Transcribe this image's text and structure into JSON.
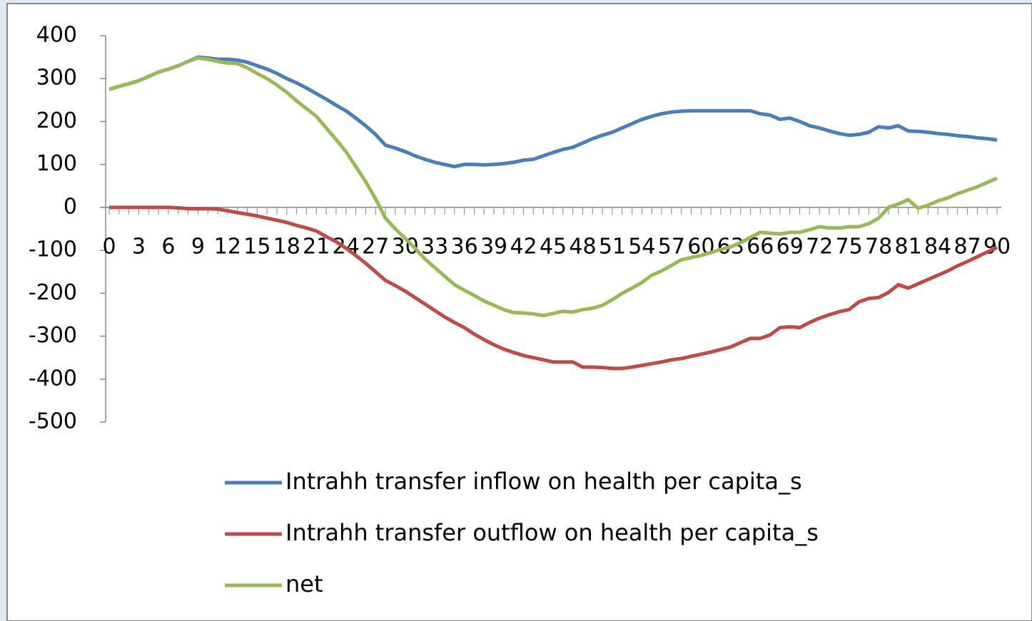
{
  "chart_data": {
    "type": "line",
    "categories": [
      "0",
      null,
      null,
      "3",
      null,
      null,
      "6",
      null,
      null,
      "9",
      null,
      null,
      "12",
      null,
      null,
      "15",
      null,
      null,
      "18",
      null,
      null,
      "21",
      null,
      null,
      "24",
      null,
      null,
      "27",
      null,
      null,
      "30",
      null,
      null,
      "33",
      null,
      null,
      "36",
      null,
      null,
      "39",
      null,
      null,
      "42",
      null,
      null,
      "45",
      null,
      null,
      "48",
      null,
      null,
      "51",
      null,
      null,
      "54",
      null,
      null,
      "57",
      null,
      null,
      "60",
      null,
      null,
      "63",
      null,
      null,
      "66",
      null,
      null,
      "69",
      null,
      null,
      "72",
      null,
      null,
      "75",
      null,
      null,
      "78",
      null,
      null,
      "81",
      null,
      null,
      "84",
      null,
      null,
      "87",
      null,
      null,
      "90"
    ],
    "series": [
      {
        "name": "Intrahh transfer inflow on health per capita_s",
        "color": "#4a7ebb",
        "values": [
          275,
          282,
          288,
          295,
          305,
          315,
          322,
          330,
          340,
          350,
          348,
          345,
          345,
          343,
          338,
          330,
          322,
          312,
          300,
          290,
          278,
          265,
          252,
          238,
          225,
          208,
          190,
          170,
          145,
          138,
          130,
          120,
          112,
          105,
          100,
          95,
          100,
          100,
          99,
          100,
          102,
          105,
          110,
          112,
          120,
          128,
          135,
          140,
          150,
          160,
          168,
          175,
          185,
          195,
          205,
          212,
          218,
          222,
          224,
          225,
          225,
          225,
          225,
          225,
          225,
          225,
          218,
          215,
          205,
          208,
          200,
          190,
          185,
          178,
          172,
          168,
          170,
          175,
          188,
          185,
          190,
          178,
          177,
          175,
          172,
          170,
          167,
          165,
          162,
          160,
          157
        ]
      },
      {
        "name": "Intrahh transfer outflow on health per capita_s",
        "color": "#be4b48",
        "values": [
          0,
          0,
          0,
          0,
          0,
          0,
          0,
          -1,
          -3,
          -3,
          -3,
          -4,
          -8,
          -12,
          -16,
          -20,
          -25,
          -30,
          -35,
          -42,
          -48,
          -55,
          -68,
          -80,
          -95,
          -112,
          -130,
          -150,
          -170,
          -182,
          -195,
          -210,
          -225,
          -240,
          -255,
          -268,
          -280,
          -295,
          -308,
          -320,
          -330,
          -338,
          -345,
          -350,
          -355,
          -360,
          -360,
          -360,
          -372,
          -372,
          -373,
          -375,
          -375,
          -372,
          -368,
          -364,
          -360,
          -355,
          -352,
          -347,
          -342,
          -337,
          -331,
          -325,
          -315,
          -305,
          -305,
          -297,
          -280,
          -278,
          -280,
          -268,
          -258,
          -250,
          -243,
          -238,
          -220,
          -212,
          -210,
          -198,
          -180,
          -188,
          -178,
          -168,
          -158,
          -148,
          -136,
          -126,
          -115,
          -104,
          -93
        ]
      },
      {
        "name": "net",
        "color": "#98b954",
        "values": [
          275,
          282,
          288,
          295,
          305,
          315,
          322,
          330,
          340,
          348,
          345,
          340,
          336,
          335,
          325,
          312,
          300,
          285,
          268,
          248,
          230,
          212,
          185,
          158,
          130,
          95,
          60,
          20,
          -25,
          -50,
          -72,
          -95,
          -120,
          -140,
          -160,
          -180,
          -193,
          -205,
          -218,
          -228,
          -238,
          -245,
          -246,
          -248,
          -252,
          -247,
          -242,
          -244,
          -238,
          -235,
          -228,
          -215,
          -200,
          -188,
          -175,
          -158,
          -148,
          -135,
          -122,
          -117,
          -112,
          -105,
          -98,
          -92,
          -82,
          -70,
          -58,
          -60,
          -62,
          -58,
          -58,
          -52,
          -45,
          -48,
          -48,
          -45,
          -45,
          -38,
          -25,
          0,
          8,
          18,
          -2,
          5,
          15,
          22,
          32,
          40,
          48,
          58,
          68
        ]
      }
    ],
    "ylim": [
      -500,
      400
    ],
    "yticks": [
      -500,
      -400,
      -300,
      -200,
      -100,
      0,
      100,
      200,
      300,
      400
    ],
    "legend": "bottom"
  }
}
